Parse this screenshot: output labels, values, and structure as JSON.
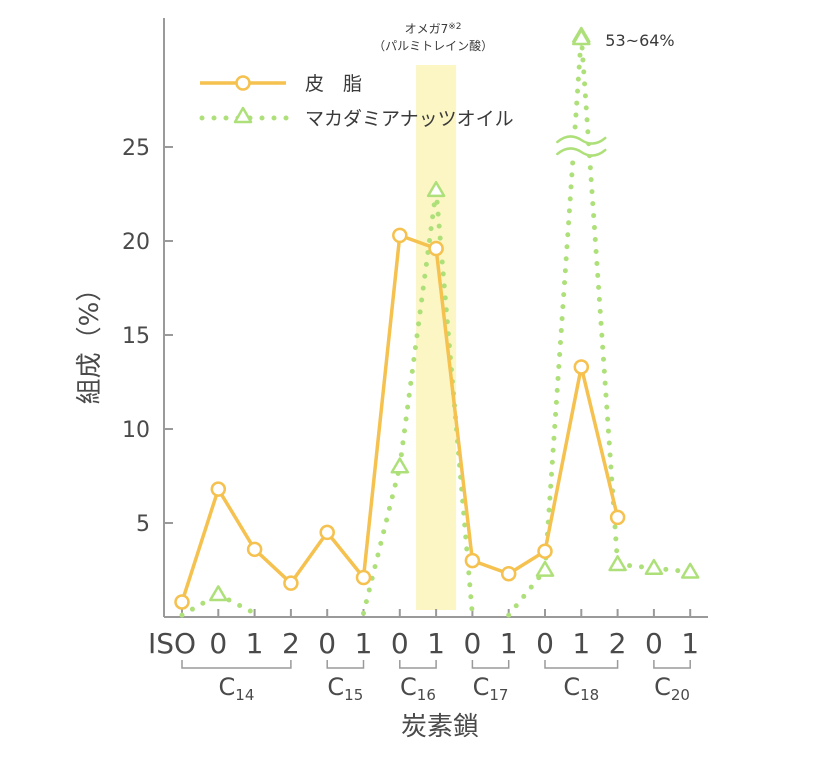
{
  "chart_data": {
    "type": "line",
    "ylabel": "組成（%）",
    "xlabel": "炭素鎖",
    "ylim": [
      0,
      30
    ],
    "y_ticks": [
      5,
      10,
      15,
      20,
      25
    ],
    "categories": [
      "ISO",
      "0",
      "1",
      "2",
      "0",
      "1",
      "0",
      "1",
      "0",
      "1",
      "0",
      "1",
      "2",
      "0",
      "1"
    ],
    "groups": [
      {
        "label": "C",
        "sub": "14",
        "from": 0,
        "to": 3
      },
      {
        "label": "C",
        "sub": "15",
        "from": 4,
        "to": 5
      },
      {
        "label": "C",
        "sub": "16",
        "from": 6,
        "to": 7
      },
      {
        "label": "C",
        "sub": "17",
        "from": 8,
        "to": 9
      },
      {
        "label": "C",
        "sub": "18",
        "from": 10,
        "to": 12
      },
      {
        "label": "C",
        "sub": "20",
        "from": 13,
        "to": 14
      }
    ],
    "series": [
      {
        "name": "皮　脂",
        "style": "solid-circle",
        "color": "#f5c14f",
        "values": [
          0.8,
          6.8,
          3.6,
          1.8,
          4.5,
          2.1,
          20.3,
          19.6,
          3.0,
          2.3,
          3.5,
          13.3,
          5.3,
          null,
          null
        ]
      },
      {
        "name": "マカダミアナッツオイル",
        "style": "dotted-triangle",
        "color": "#aee07a",
        "values": [
          0.1,
          1.2,
          0.2,
          null,
          null,
          0.2,
          8.0,
          22.7,
          0.1,
          0.1,
          2.5,
          58.5,
          2.8,
          2.6,
          2.4
        ]
      }
    ],
    "annotations": {
      "highlight_label_1": "オメガ7",
      "highlight_label_2": "※2",
      "highlight_label_3": "（パルミトレイン酸）",
      "highlight_index": 7,
      "peak_label": "53~64%",
      "peak_index": 11
    },
    "highlight_color": "#fbf6c4"
  }
}
